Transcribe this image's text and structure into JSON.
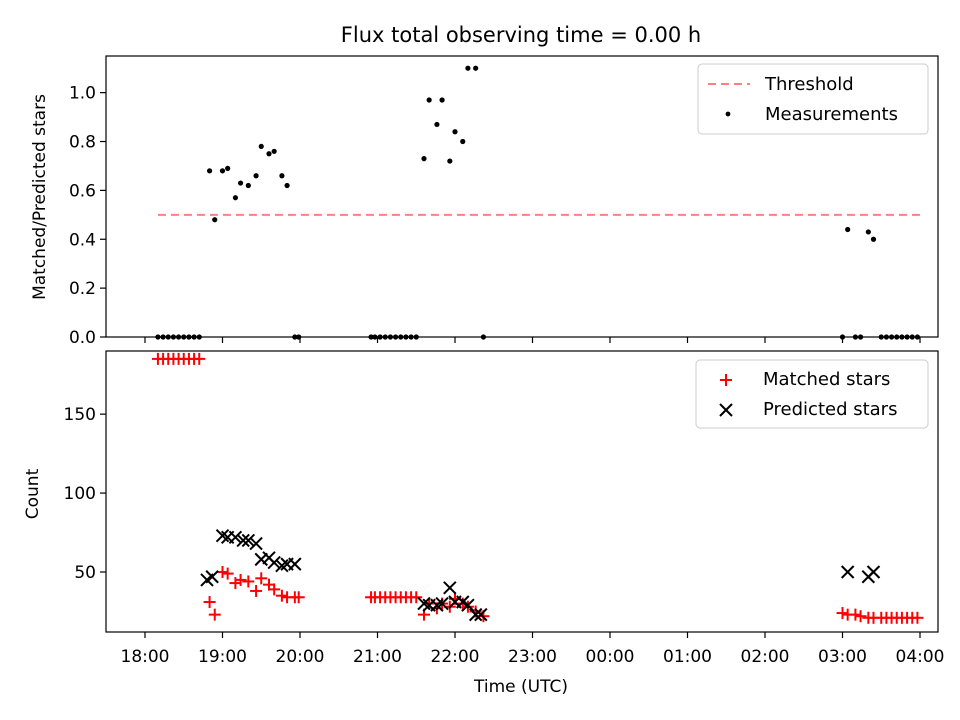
{
  "chart_data": [
    {
      "type": "scatter",
      "title": "Flux total observing time = 0.00 h",
      "ylabel": "Matched/Predicted stars",
      "xlabel": "",
      "ylim": [
        0,
        1.15
      ],
      "yticks": [
        "0.0",
        "0.2",
        "0.4",
        "0.6",
        "0.8",
        "1.0"
      ],
      "legend": "top-right",
      "threshold": {
        "name": "Threshold",
        "value": 0.5,
        "x_start": "18:10",
        "x_end": "04:00",
        "color": "#ff7f7f"
      },
      "series": [
        {
          "name": "Measurements",
          "color": "#000000",
          "x": [
            "18:10",
            "18:14",
            "18:18",
            "18:22",
            "18:26",
            "18:30",
            "18:34",
            "18:38",
            "18:42",
            "18:50",
            "18:54",
            "19:00",
            "19:04",
            "19:10",
            "19:14",
            "19:20",
            "19:26",
            "19:30",
            "19:36",
            "19:40",
            "19:46",
            "19:50",
            "19:56",
            "19:59",
            "20:55",
            "20:58",
            "21:02",
            "21:06",
            "21:10",
            "21:14",
            "21:18",
            "21:22",
            "21:26",
            "21:30",
            "21:36",
            "21:40",
            "21:46",
            "21:50",
            "21:56",
            "22:00",
            "22:06",
            "22:10",
            "22:16",
            "22:22",
            "03:00",
            "03:04",
            "03:10",
            "03:14",
            "03:20",
            "03:24",
            "03:30",
            "03:34",
            "03:38",
            "03:42",
            "03:46",
            "03:50",
            "03:54",
            "03:58"
          ],
          "y": [
            0,
            0,
            0,
            0,
            0,
            0,
            0,
            0,
            0,
            0.68,
            0.48,
            0.68,
            0.69,
            0.57,
            0.63,
            0.62,
            0.66,
            0.78,
            0.75,
            0.76,
            0.66,
            0.62,
            0,
            0,
            0,
            0,
            0,
            0,
            0,
            0,
            0,
            0,
            0,
            0,
            0.73,
            0.97,
            0.87,
            0.97,
            0.72,
            0.84,
            0.8,
            1.1,
            1.1,
            0,
            0,
            0.44,
            0,
            0,
            0.43,
            0.4,
            0,
            0,
            0,
            0,
            0,
            0,
            0,
            0
          ]
        }
      ]
    },
    {
      "type": "scatter",
      "title": "",
      "ylabel": "Count",
      "xlabel": "Time (UTC)",
      "ylim": [
        12,
        190
      ],
      "yticks": [
        "50",
        "100",
        "150"
      ],
      "xticks": [
        "18:00",
        "19:00",
        "20:00",
        "21:00",
        "22:00",
        "23:00",
        "00:00",
        "01:00",
        "02:00",
        "03:00",
        "04:00"
      ],
      "legend": "top-right",
      "series": [
        {
          "name": "Matched stars",
          "color": "#ff0000",
          "x": [
            "18:10",
            "18:14",
            "18:18",
            "18:22",
            "18:26",
            "18:30",
            "18:34",
            "18:38",
            "18:42",
            "18:50",
            "18:54",
            "19:00",
            "19:04",
            "19:10",
            "19:14",
            "19:20",
            "19:26",
            "19:30",
            "19:36",
            "19:40",
            "19:46",
            "19:50",
            "19:56",
            "19:59",
            "20:55",
            "20:58",
            "21:02",
            "21:06",
            "21:10",
            "21:14",
            "21:18",
            "21:22",
            "21:26",
            "21:30",
            "21:36",
            "21:40",
            "21:46",
            "21:50",
            "21:56",
            "22:00",
            "22:06",
            "22:10",
            "22:16",
            "22:22",
            "03:00",
            "03:04",
            "03:10",
            "03:14",
            "03:20",
            "03:24",
            "03:30",
            "03:34",
            "03:38",
            "03:42",
            "03:46",
            "03:50",
            "03:54",
            "03:58"
          ],
          "y": [
            185,
            185,
            185,
            185,
            185,
            185,
            185,
            185,
            185,
            31,
            23,
            50,
            49,
            43,
            45,
            44,
            38,
            46,
            42,
            39,
            35,
            34,
            34,
            34,
            34,
            34,
            34,
            34,
            34,
            34,
            34,
            34,
            34,
            34,
            23,
            30,
            27,
            30,
            28,
            33,
            30,
            28,
            25,
            22,
            24,
            23,
            23,
            22,
            21,
            21,
            21,
            21,
            21,
            21,
            21,
            21,
            21,
            21
          ]
        },
        {
          "name": "Predicted stars",
          "color": "#000000",
          "x": [
            "18:48",
            "18:52",
            "19:00",
            "19:04",
            "19:10",
            "19:16",
            "19:20",
            "19:26",
            "19:30",
            "19:36",
            "19:40",
            "19:46",
            "19:50",
            "19:56",
            "21:36",
            "21:40",
            "21:46",
            "21:50",
            "21:56",
            "22:00",
            "22:06",
            "22:10",
            "22:16",
            "22:20",
            "03:04",
            "03:20",
            "03:24"
          ],
          "y": [
            45,
            47,
            73,
            72,
            72,
            70,
            70,
            68,
            58,
            59,
            56,
            54,
            55,
            55,
            30,
            29,
            29,
            30,
            40,
            31,
            31,
            29,
            23,
            23,
            50,
            47,
            50
          ]
        }
      ]
    }
  ]
}
